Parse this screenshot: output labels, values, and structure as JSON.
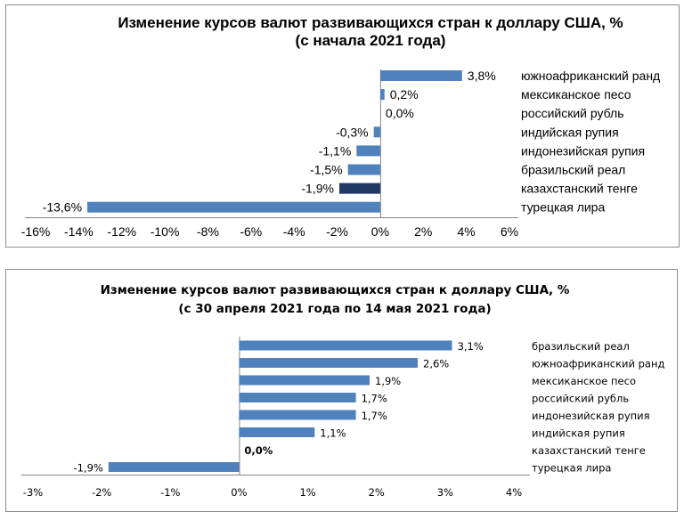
{
  "colors": {
    "bar": "#4f81bd",
    "highlight": "#1f3864",
    "frame": "#8c8c8c",
    "axis": "#868686"
  },
  "chart_data": [
    {
      "type": "bar",
      "orientation": "horizontal",
      "title": "Изменение курсов валют развивающихся стран к доллару США, %",
      "subtitle": "(с начала 2021 года)",
      "categories": [
        "южноафриканский ранд",
        "мексиканское песо",
        "российский рубль",
        "индийская рупия",
        "индонезийская рупия",
        "бразильский реал",
        "казахстанский тенге",
        "турецкая лира"
      ],
      "values": [
        3.8,
        0.2,
        0.0,
        -0.3,
        -1.1,
        -1.5,
        -1.9,
        -13.6
      ],
      "data_labels": [
        "3,8%",
        "0,2%",
        "0,0%",
        "-0,3%",
        "-1,1%",
        "-1,5%",
        "-1,9%",
        "-13,6%"
      ],
      "highlight_index": 6,
      "xlim": [
        -16,
        6
      ],
      "ticks": [
        -16,
        -14,
        -12,
        -10,
        -8,
        -6,
        -4,
        -2,
        0,
        2,
        4,
        6
      ],
      "tick_labels": [
        "-16%",
        "-14%",
        "-12%",
        "-10%",
        "-8%",
        "-6%",
        "-4%",
        "-2%",
        "0%",
        "2%",
        "4%",
        "6%"
      ],
      "grid": false,
      "legend": "none"
    },
    {
      "type": "bar",
      "orientation": "horizontal",
      "title": "Изменение курсов валют развивающихся стран к доллару США, %",
      "subtitle": "(с 30 апреля 2021 года по 14 мая 2021 года)",
      "categories": [
        "бразильский реал",
        "южноафриканский ранд",
        "мексиканское песо",
        "российский рубль",
        "индонезийская рупия",
        "индийская рупия",
        "казахстанский тенге",
        "турецкая лира"
      ],
      "values": [
        3.1,
        2.6,
        1.9,
        1.7,
        1.7,
        1.1,
        0.0,
        -1.9
      ],
      "data_labels": [
        "3,1%",
        "2,6%",
        "1,9%",
        "1,7%",
        "1,7%",
        "1,1%",
        "0,0%",
        "-1,9%"
      ],
      "bold_label_index": 6,
      "xlim": [
        -3,
        4
      ],
      "ticks": [
        -3,
        -2,
        -1,
        0,
        1,
        2,
        3,
        4
      ],
      "tick_labels": [
        "-3%",
        "-2%",
        "-1%",
        "0%",
        "1%",
        "2%",
        "3%",
        "4%"
      ],
      "grid": false,
      "legend": "none"
    }
  ]
}
